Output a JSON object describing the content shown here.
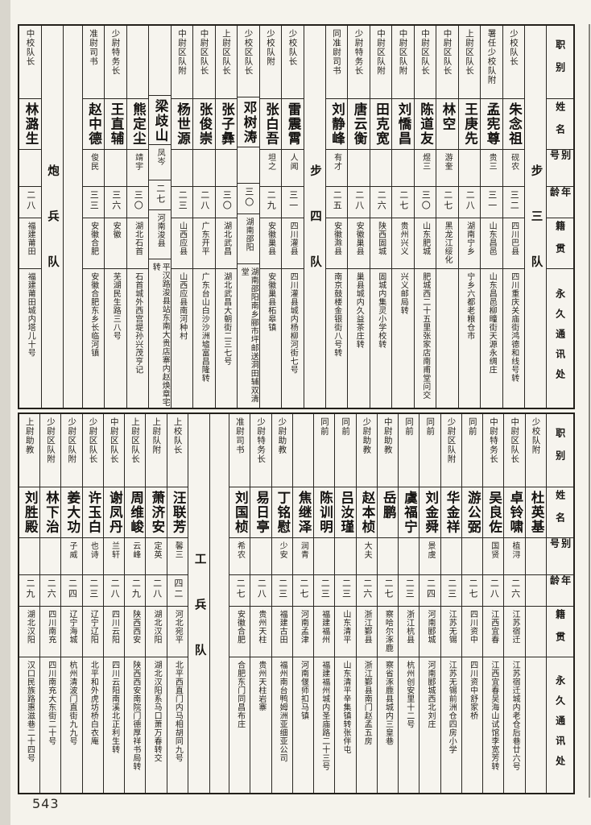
{
  "page_number": "543",
  "header_labels": [
    "职别",
    "姓名",
    "别号",
    "年龄",
    "籍贯",
    "永久通讯处"
  ],
  "tables": [
    {
      "id": "top",
      "columns": [
        {
          "type": "header"
        },
        {
          "type": "squad",
          "label": "步三队"
        },
        {
          "type": "person",
          "rank": "少校队长",
          "name": "朱念祖",
          "alias": "砚农",
          "age": "三二",
          "native": "四川巴县",
          "address": "四川重庆关庙街鸿德和线号转"
        },
        {
          "type": "person",
          "rank": "署任少校队附",
          "name": "孟宪尊",
          "alias": "贵三",
          "age": "三一",
          "native": "山东昌邑",
          "address": "山东昌邑柳疃街天源永绸庄"
        },
        {
          "type": "person",
          "rank": "上尉区队长",
          "name": "王庚先",
          "alias": "",
          "age": "二八",
          "native": "湖南宁乡",
          "address": "宁乡六都老粮仓市"
        },
        {
          "type": "person",
          "rank": "中尉区队长",
          "name": "林空",
          "alias": "游奎",
          "age": "二七",
          "native": "黑龙江绥化",
          "address": ""
        },
        {
          "type": "person",
          "rank": "中尉区队长",
          "name": "陈道友",
          "alias": "煜三",
          "age": "三〇",
          "native": "山东肥城",
          "address": "肥城西二十五里张家店南甫堂问交"
        },
        {
          "type": "person",
          "rank": "中尉区队附",
          "name": "刘憍昌",
          "alias": "",
          "age": "二七",
          "native": "贵州兴义",
          "address": "兴义邮局转"
        },
        {
          "type": "person",
          "rank": "中尉区队附",
          "name": "田克宽",
          "alias": "",
          "age": "二六",
          "native": "陕西固城",
          "address": "固城内集灵小学校转"
        },
        {
          "type": "person",
          "rank": "少尉特务长",
          "name": "唐云衡",
          "alias": "",
          "age": "二八",
          "native": "安徽巢县",
          "address": "巢县城内久益茶庄转"
        },
        {
          "type": "person",
          "rank": "同准尉司书",
          "name": "刘静峰",
          "alias": "有才",
          "age": "二五",
          "native": "安徽滁县",
          "address": "南京鼓楼金银街八号转"
        },
        {
          "type": "squad",
          "label": "步四队"
        },
        {
          "type": "person",
          "rank": "少校队长",
          "name": "雷震霄",
          "alias": "人闻",
          "age": "三一",
          "native": "四川灌县",
          "address": "四川灌县城内杨柳河街七号"
        },
        {
          "type": "person",
          "rank": "少校队附",
          "name": "张白吾",
          "alias": "坦之",
          "age": "二九",
          "native": "安徽巢县",
          "address": "安徽巢县柘皋镇"
        },
        {
          "type": "person",
          "rank": "少校区队长",
          "name": "邓树涛",
          "alias": "",
          "age": "三〇",
          "native": "湖南邵阳",
          "address": "湖南邵阳南乡郦市坪邮送洞田辅双清堂"
        },
        {
          "type": "person",
          "rank": "上尉区队长",
          "name": "张子彝",
          "alias": "",
          "age": "三〇",
          "native": "湖北武昌",
          "address": "湖北武昌大朝街二三七号"
        },
        {
          "type": "person",
          "rank": "中尉区队长",
          "name": "张俊崇",
          "alias": "",
          "age": "二八",
          "native": "广东开平",
          "address": "广东台山白沙沙洲墟富昌隆转"
        },
        {
          "type": "person",
          "rank": "中尉区队附",
          "name": "杨世源",
          "alias": "",
          "age": "二三",
          "native": "山西应县",
          "address": "山西应县南河种村"
        },
        {
          "type": "person",
          "rank": "",
          "name": "梁歧山",
          "alias": "凤岑",
          "age": "二七",
          "native": "河南浚县",
          "address": "平汉路浚县站东南大贵店寨内赵焕章宅转"
        },
        {
          "type": "person",
          "rank": "",
          "name": "熊定尘",
          "alias": "靖宇",
          "age": "三〇",
          "native": "湖北石首",
          "address": "石首城外西宫堤孙兴茂亨记"
        },
        {
          "type": "person",
          "rank": "少尉特务长",
          "name": "王直辅",
          "alias": "",
          "age": "三六",
          "native": "安徽",
          "address": "芜湖民生路三八号"
        },
        {
          "type": "person",
          "rank": "准尉司书",
          "name": "赵中德",
          "alias": "俊民",
          "age": "三三",
          "native": "安徽合肥",
          "address": "安徽合肥东乡长临河镇"
        },
        {
          "type": "spacer"
        },
        {
          "type": "squad",
          "label": "炮兵队"
        },
        {
          "type": "person",
          "rank": "中校队长",
          "name": "林潞生",
          "alias": "",
          "age": "二八",
          "native": "福建莆田",
          "address": "福建莆田城内塔儿十号"
        }
      ]
    },
    {
      "id": "bottom",
      "columns": [
        {
          "type": "header"
        },
        {
          "type": "person",
          "rank": "少校队附",
          "name": "杜英基",
          "alias": "",
          "age": "",
          "native": "",
          "address": ""
        },
        {
          "type": "person",
          "rank": "中尉区队长",
          "name": "卓铃啸",
          "alias": "植浔",
          "age": "二六",
          "native": "江苏宿迁",
          "address": "江苏宿迁城内老仓后巷廿六号"
        },
        {
          "type": "person",
          "rank": "中尉特务长",
          "name": "吴良佐",
          "alias": "国贤",
          "age": "二八",
          "native": "江西宜春",
          "address": "江西宜春吴海山试馆李宽芳转"
        },
        {
          "type": "person",
          "rank": "同前",
          "name": "游公弼",
          "alias": "",
          "age": "二七",
          "native": "四川资中",
          "address": "四川资中舒家桥"
        },
        {
          "type": "person",
          "rank": "少尉区队附",
          "name": "华金祥",
          "alias": "",
          "age": "二三",
          "native": "江苏无锡",
          "address": "江苏无锡前洲仓四房小学"
        },
        {
          "type": "person",
          "rank": "同前",
          "name": "刘金舜",
          "alias": "景虞",
          "age": "二四",
          "native": "河南郾城",
          "address": "河南郾城西北刘庄"
        },
        {
          "type": "person",
          "rank": "同前",
          "name": "虞福宁",
          "alias": "",
          "age": "二三",
          "native": "浙江杭县",
          "address": "杭州创安里十二号"
        },
        {
          "type": "person",
          "rank": "中尉助教",
          "name": "岳鹏",
          "alias": "",
          "age": "二七",
          "native": "察哈尔涿鹿",
          "address": "察省涿鹿县城内三皇巷"
        },
        {
          "type": "person",
          "rank": "少尉助教",
          "name": "赵本桢",
          "alias": "大夫",
          "age": "二六",
          "native": "浙江鄞县",
          "address": "浙江鄞县南门赵孟五房"
        },
        {
          "type": "person",
          "rank": "同前",
          "name": "吕汝瑾",
          "alias": "",
          "age": "二三",
          "native": "山东清平",
          "address": "山东清平辛集镇转张伴屯"
        },
        {
          "type": "person",
          "rank": "同前",
          "name": "陈训明",
          "alias": "",
          "age": "二三",
          "native": "福建福州",
          "address": "福建福州城内圣庙路二十三号"
        },
        {
          "type": "person",
          "rank": "",
          "name": "焦继泽",
          "alias": "润青",
          "age": "二七",
          "native": "河南孟津",
          "address": "河南偃师扣马镇"
        },
        {
          "type": "person",
          "rank": "少尉助教",
          "name": "丁铭慰",
          "alias": "少安",
          "age": "二三",
          "native": "福建古田",
          "address": "福州南台鸭姆洲亚细亚公司"
        },
        {
          "type": "person",
          "rank": "少尉特务长",
          "name": "易日亭",
          "alias": "",
          "age": "二八",
          "native": "贵州天柱",
          "address": "贵州天柱岩寨"
        },
        {
          "type": "person",
          "rank": "准尉司书",
          "name": "刘国桢",
          "alias": "希农",
          "age": "二七",
          "native": "安徽合肥",
          "address": "合肥东门同昌布庄"
        },
        {
          "type": "spacer"
        },
        {
          "type": "squad",
          "label": "工兵队"
        },
        {
          "type": "person",
          "rank": "上校队长",
          "name": "汪联芳",
          "alias": "馨三",
          "age": "四二",
          "native": "河北宛平",
          "address": "北平西直门内马相胡同九号"
        },
        {
          "type": "person",
          "rank": "上尉队附",
          "name": "萧济安",
          "alias": "定英",
          "age": "二八",
          "native": "湖北汉阳",
          "address": "湖北汉阳系马口萧万春转交"
        },
        {
          "type": "person",
          "rank": "上尉区队长",
          "name": "周维峻",
          "alias": "云峰",
          "age": "二九",
          "native": "陕西西安",
          "address": "陕西西安南院门德厚祥书局转"
        },
        {
          "type": "person",
          "rank": "中尉区队长",
          "name": "谢凤丹",
          "alias": "兰轩",
          "age": "二八",
          "native": "四川云阳",
          "address": "四川云阳南溪北正利生转"
        },
        {
          "type": "person",
          "rank": "少尉区队长",
          "name": "许玉白",
          "alias": "也诗",
          "age": "二三",
          "native": "辽宁辽阳",
          "address": "北平和外虎坊桥白衣庵"
        },
        {
          "type": "person",
          "rank": "少尉区队附",
          "name": "姜大功",
          "alias": "子威",
          "age": "二四",
          "native": "辽宁海城",
          "address": "杭州清波门直街九九号"
        },
        {
          "type": "person",
          "rank": "少尉区队附",
          "name": "林下治",
          "alias": "",
          "age": "二六",
          "native": "四川南充",
          "address": "四川南充大东街二十号"
        },
        {
          "type": "person",
          "rank": "上尉助教",
          "name": "刘胜殿",
          "alias": "",
          "age": "二九",
          "native": "湖北汉阳",
          "address": "汉口民族路惠滋巷二十四号"
        }
      ]
    }
  ]
}
